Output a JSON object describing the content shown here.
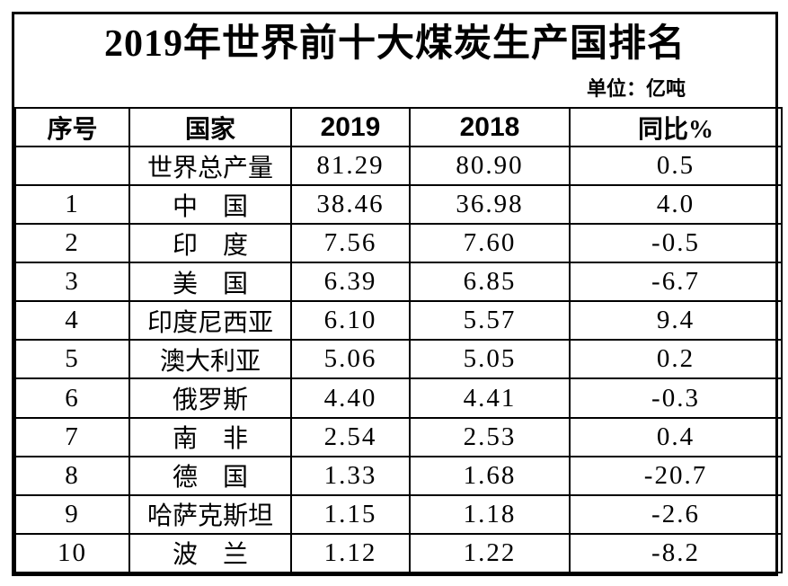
{
  "header": {
    "title": "2019年世界前十大煤炭生产国排名",
    "unit_label": "单位：亿吨"
  },
  "colors": {
    "border": "#000000",
    "text": "#000000",
    "background": "#ffffff"
  },
  "chart_data": {
    "type": "table",
    "title": "2019年世界前十大煤炭生产国排名",
    "unit": "亿吨",
    "columns": [
      "序号",
      "国家",
      "2019",
      "2018",
      "同比%"
    ],
    "rows": [
      [
        "",
        "世界总产量",
        "81.29",
        "80.90",
        "0.5"
      ],
      [
        "1",
        "中　国",
        "38.46",
        "36.98",
        "4.0"
      ],
      [
        "2",
        "印　度",
        "7.56",
        "7.60",
        "-0.5"
      ],
      [
        "3",
        "美　国",
        "6.39",
        "6.85",
        "-6.7"
      ],
      [
        "4",
        "印度尼西亚",
        "6.10",
        "5.57",
        "9.4"
      ],
      [
        "5",
        "澳大利亚",
        "5.06",
        "5.05",
        "0.2"
      ],
      [
        "6",
        "俄罗斯",
        "4.40",
        "4.41",
        "-0.3"
      ],
      [
        "7",
        "南　非",
        "2.54",
        "2.53",
        "0.4"
      ],
      [
        "8",
        "德　国",
        "1.33",
        "1.68",
        "-20.7"
      ],
      [
        "9",
        "哈萨克斯坦",
        "1.15",
        "1.18",
        "-2.6"
      ],
      [
        "10",
        "波　兰",
        "1.12",
        "1.22",
        "-8.2"
      ]
    ]
  }
}
